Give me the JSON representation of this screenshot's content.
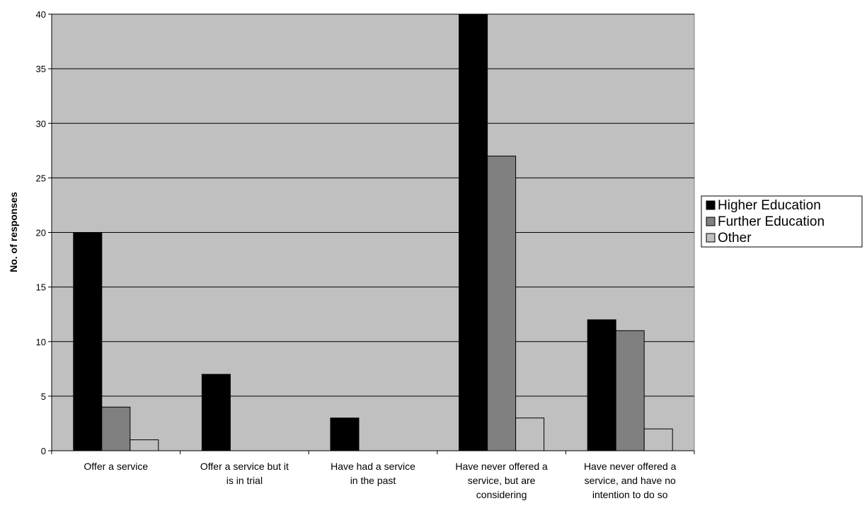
{
  "chart_data": {
    "type": "bar",
    "title": "",
    "xlabel": "",
    "ylabel": "No. of responses",
    "ylim": [
      0,
      40
    ],
    "yticks": [
      0,
      5,
      10,
      15,
      20,
      25,
      30,
      35,
      40
    ],
    "grid": true,
    "legend_position": "right",
    "plot_background": "#c0c0c0",
    "categories": [
      [
        "Offer a service"
      ],
      [
        "Offer a service but it",
        "is in trial"
      ],
      [
        "Have had a service",
        "in the past"
      ],
      [
        "Have never offered a",
        "service, but are",
        "considering"
      ],
      [
        "Have never offered a",
        "service, and have no",
        "intention to do so"
      ]
    ],
    "series": [
      {
        "name": "Higher Education",
        "color": "#000000",
        "values": [
          20,
          7,
          3,
          40,
          12
        ]
      },
      {
        "name": "Further Education",
        "color": "#808080",
        "values": [
          4,
          0,
          0,
          27,
          11
        ]
      },
      {
        "name": "Other",
        "color": "#c0c0c0",
        "values": [
          1,
          0,
          0,
          3,
          2
        ]
      }
    ]
  }
}
